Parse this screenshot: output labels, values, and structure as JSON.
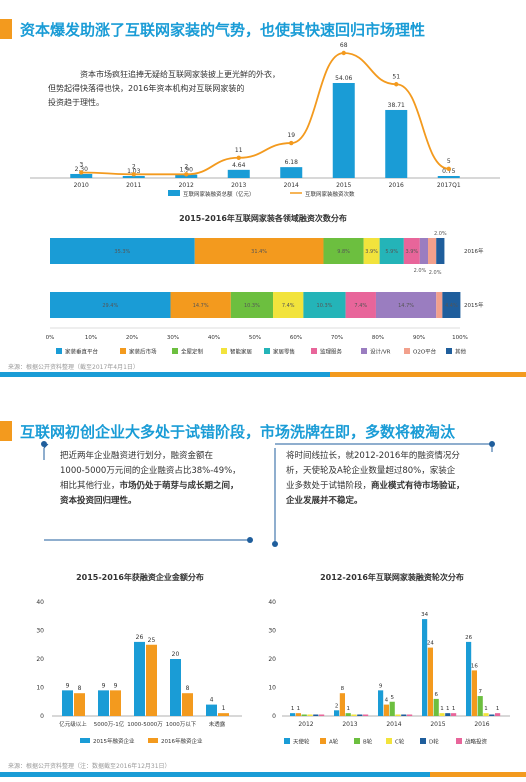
{
  "section1": {
    "title": "资本爆发助涨了互联网家装的气势，也使其快速回归市场理性",
    "intro_lines": [
      "资本市场疯狂追捧无疑给互联网家装披上更光鲜的外衣，",
      "但势起得快落得也快，2016年资本机构对互联网家装的",
      "投资趋于理性。"
    ],
    "note": "来源：根据公开资料整理（截至2017年4月1日）"
  },
  "section2": {
    "title": "互联网初创企业大多处于试错阶段，市场洗牌在即，多数将被淘汰",
    "box_left": {
      "line1": "把近两年企业融资进行划分，融资金额在",
      "line2": "1000-5000万元间的企业融资占比38%-49%，",
      "line3_plain": "相比其他行业，",
      "line3_bold": "市场仍处于萌芽与成长期之间，",
      "line4_bold": "资本投资回归理性。"
    },
    "box_right": {
      "line1": "将时间线拉长，就2012-2016年的融资情况分",
      "line2": "析，天使轮及A轮企业数量超过80%，家装企",
      "line3_plain": "业多数处于试错阶段，",
      "line3_bold": "商业模式有待市场验证，",
      "line4_bold": "企业发展并不稳定。"
    },
    "note": "来源：根据公开资料整理（注：数据截至2016年12月31日）"
  },
  "colors": {
    "blue": "#1a9cd6",
    "orange": "#f39a1e",
    "green": "#6cbf3f",
    "yellow": "#f2e33c",
    "teal": "#24b4b8",
    "pink": "#e8659a",
    "purple": "#9a7dc0",
    "peach": "#f2a08c",
    "navy": "#1f5e9c"
  },
  "chart_data": [
    {
      "type": "bar+line",
      "title": "",
      "categories": [
        "2010",
        "2011",
        "2012",
        "2013",
        "2014",
        "2015",
        "2016",
        "2017Q1"
      ],
      "series": [
        {
          "name": "互联网家装融资总额（亿元）",
          "type": "bar",
          "values": [
            2.3,
            1.03,
            1.9,
            4.64,
            6.18,
            54.06,
            38.71,
            0.75
          ]
        },
        {
          "name": "互联网家装融资次数",
          "type": "line",
          "values": [
            3,
            2,
            2,
            11,
            19,
            68,
            51,
            5
          ]
        }
      ]
    },
    {
      "type": "stacked-bar-100",
      "title": "2015-2016年互联网家装各领域融资次数分布",
      "categories": [
        "2016年",
        "2015年"
      ],
      "xticks": [
        "0%",
        "10%",
        "20%",
        "30%",
        "40%",
        "50%",
        "60%",
        "70%",
        "80%",
        "90%",
        "100%"
      ],
      "series": [
        {
          "name": "家装垂直平台",
          "values": [
            35.3,
            29.4
          ]
        },
        {
          "name": "家装后市场",
          "values": [
            31.4,
            14.7
          ]
        },
        {
          "name": "全屋定制",
          "values": [
            9.8,
            10.3
          ]
        },
        {
          "name": "智能家居",
          "values": [
            3.9,
            7.4
          ]
        },
        {
          "name": "家居零售",
          "values": [
            5.9,
            10.3
          ]
        },
        {
          "name": "监理服务",
          "values": [
            3.9,
            7.4
          ]
        },
        {
          "name": "设计/VR",
          "values": [
            2.0,
            14.7
          ]
        },
        {
          "name": "O2O平台",
          "values": [
            2.0,
            1.5
          ]
        },
        {
          "name": "其他",
          "values": [
            2.0,
            4.4
          ]
        }
      ],
      "labels": {
        "2016年": [
          "35.3%",
          "31.4%",
          "9.8%",
          "3.9%",
          "5.9%",
          "3.9%",
          "2.0%",
          "2.0%",
          "2.0%"
        ],
        "2015年": [
          "29.4%",
          "14.7%",
          "10.3%",
          "7.4%",
          "10.3%",
          "7.4%",
          "14.7%",
          "",
          "4.4%"
        ]
      }
    },
    {
      "type": "bar",
      "title": "2015-2016年获融资企业金额分布",
      "categories": [
        "亿元级以上",
        "5000万-1亿",
        "1000-5000万",
        "1000万以下",
        "未透露"
      ],
      "ylim": [
        0,
        40
      ],
      "yticks": [
        "0",
        "10",
        "20",
        "30",
        "40"
      ],
      "series": [
        {
          "name": "2015年融资企业",
          "values": [
            9,
            9,
            26,
            20,
            4
          ]
        },
        {
          "name": "2016年融资企业",
          "values": [
            8,
            9,
            25,
            8,
            1
          ]
        }
      ]
    },
    {
      "type": "bar",
      "title": "2012-2016年互联网家装融资轮次分布",
      "categories": [
        "2012",
        "2013",
        "2014",
        "2015",
        "2016"
      ],
      "ylim": [
        0,
        40
      ],
      "yticks": [
        "0",
        "10",
        "20",
        "30",
        "40"
      ],
      "series": [
        {
          "name": "天使轮",
          "values": [
            1,
            2,
            9,
            34,
            26
          ]
        },
        {
          "name": "A轮",
          "values": [
            1,
            8,
            4,
            24,
            16
          ]
        },
        {
          "name": "B轮",
          "values": [
            0,
            1,
            5,
            6,
            7
          ]
        },
        {
          "name": "C轮",
          "values": [
            0,
            0,
            0,
            1,
            1
          ]
        },
        {
          "name": "D轮",
          "values": [
            0,
            0,
            0,
            1,
            0
          ]
        },
        {
          "name": "战略投资",
          "values": [
            0,
            0,
            0,
            1,
            1
          ]
        }
      ],
      "labels": [
        [
          "1",
          "1",
          "",
          "",
          "",
          ""
        ],
        [
          "2",
          "8",
          "1",
          "",
          "",
          ""
        ],
        [
          "9",
          "4",
          "5",
          "",
          "",
          ""
        ],
        [
          "34",
          "24",
          "6",
          "1",
          "1",
          "1"
        ],
        [
          "26",
          "16",
          "7",
          "1",
          "",
          "1"
        ]
      ]
    }
  ]
}
